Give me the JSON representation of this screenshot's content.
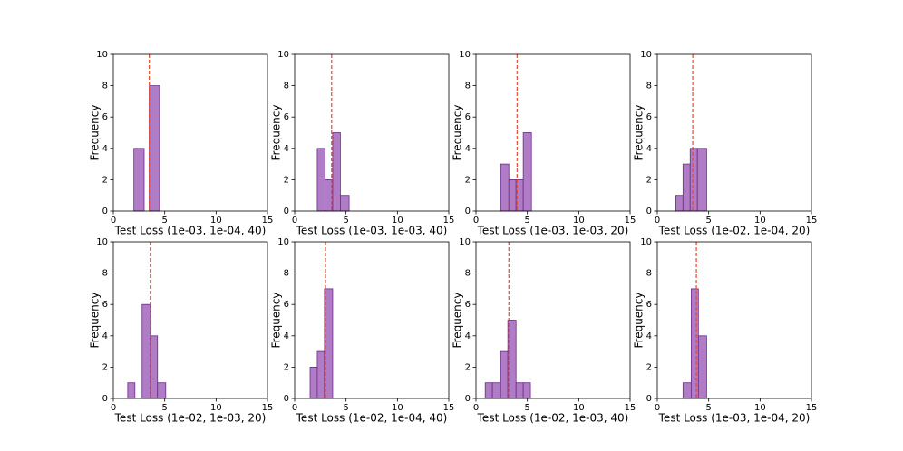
{
  "chart_data": [
    {
      "type": "histogram",
      "bins": [
        2.0,
        3.0,
        3.5,
        4.5
      ],
      "counts": [
        4,
        0,
        8
      ],
      "vline": 3.5,
      "xlabel": "Test Loss (1e-03, 1e-04, 40)",
      "ylabel": "Frequency",
      "xlim": [
        0,
        15
      ],
      "ylim": [
        0,
        10
      ],
      "xticks": [
        0,
        5,
        10,
        15
      ],
      "yticks": [
        0,
        2,
        4,
        6,
        8,
        10
      ],
      "color": "#b07cc6",
      "edgecolor": "#6a2c86",
      "vline_color": "#e8472f"
    },
    {
      "type": "histogram",
      "bins": [
        2.2,
        2.95,
        3.7,
        4.45,
        5.3
      ],
      "counts": [
        4,
        2,
        5,
        1
      ],
      "vline": 3.6,
      "xlabel": "Test Loss (1e-03, 1e-03, 40)",
      "ylabel": "Frequency",
      "xlim": [
        0,
        15
      ],
      "ylim": [
        0,
        10
      ],
      "xticks": [
        0,
        5,
        10,
        15
      ],
      "yticks": [
        0,
        2,
        4,
        6,
        8,
        10
      ],
      "color": "#b07cc6",
      "edgecolor": "#6a2c86",
      "vline_color": "#e8472f"
    },
    {
      "type": "histogram",
      "bins": [
        2.4,
        3.2,
        3.9,
        4.6,
        5.4
      ],
      "counts": [
        3,
        2,
        2,
        5
      ],
      "vline": 4.0,
      "xlabel": "Test Loss (1e-03, 1e-03, 20)",
      "ylabel": "Frequency",
      "xlim": [
        0,
        15
      ],
      "ylim": [
        0,
        10
      ],
      "xticks": [
        0,
        5,
        10,
        15
      ],
      "yticks": [
        0,
        2,
        4,
        6,
        8,
        10
      ],
      "color": "#b07cc6",
      "edgecolor": "#6a2c86",
      "vline_color": "#e8472f"
    },
    {
      "type": "histogram",
      "bins": [
        1.8,
        2.5,
        3.2,
        3.9,
        4.8
      ],
      "counts": [
        1,
        3,
        4,
        4
      ],
      "vline": 3.45,
      "xlabel": "Test Loss (1e-02, 1e-04, 20)",
      "ylabel": "Frequency",
      "xlim": [
        0,
        15
      ],
      "ylim": [
        0,
        10
      ],
      "xticks": [
        0,
        5,
        10,
        15
      ],
      "yticks": [
        0,
        2,
        4,
        6,
        8,
        10
      ],
      "color": "#b07cc6",
      "edgecolor": "#6a2c86",
      "vline_color": "#e8472f"
    },
    {
      "type": "histogram",
      "bins": [
        1.4,
        2.1,
        2.8,
        3.6,
        4.3,
        5.1
      ],
      "counts": [
        1,
        0,
        6,
        4,
        1
      ],
      "vline": 3.6,
      "xlabel": "Test Loss (1e-02, 1e-03, 20)",
      "ylabel": "Frequency",
      "xlim": [
        0,
        15
      ],
      "ylim": [
        0,
        10
      ],
      "xticks": [
        0,
        5,
        10,
        15
      ],
      "yticks": [
        0,
        2,
        4,
        6,
        8,
        10
      ],
      "color": "#b07cc6",
      "edgecolor": "#6a2c86",
      "vline_color": "#e8472f"
    },
    {
      "type": "histogram",
      "bins": [
        1.5,
        2.2,
        2.9,
        3.7
      ],
      "counts": [
        2,
        3,
        7
      ],
      "vline": 3.0,
      "xlabel": "Test Loss (1e-02, 1e-04, 40)",
      "ylabel": "Frequency",
      "xlim": [
        0,
        15
      ],
      "ylim": [
        0,
        10
      ],
      "xticks": [
        0,
        5,
        10,
        15
      ],
      "yticks": [
        0,
        2,
        4,
        6,
        8,
        10
      ],
      "color": "#b07cc6",
      "edgecolor": "#6a2c86",
      "vline_color": "#e8472f"
    },
    {
      "type": "histogram",
      "bins": [
        0.9,
        1.6,
        2.4,
        3.1,
        3.9,
        4.6,
        5.3
      ],
      "counts": [
        1,
        1,
        3,
        5,
        1,
        1
      ],
      "vline": 3.2,
      "xlabel": "Test Loss (1e-02, 1e-03, 40)",
      "ylabel": "Frequency",
      "xlim": [
        0,
        15
      ],
      "ylim": [
        0,
        10
      ],
      "xticks": [
        0,
        5,
        10,
        15
      ],
      "yticks": [
        0,
        2,
        4,
        6,
        8,
        10
      ],
      "color": "#b07cc6",
      "edgecolor": "#6a2c86",
      "vline_color": "#e8472f"
    },
    {
      "type": "histogram",
      "bins": [
        2.5,
        3.3,
        4.0,
        4.8
      ],
      "counts": [
        1,
        7,
        4
      ],
      "vline": 3.8,
      "xlabel": "Test Loss (1e-03, 1e-04, 20)",
      "ylabel": "Frequency",
      "xlim": [
        0,
        15
      ],
      "ylim": [
        0,
        10
      ],
      "xticks": [
        0,
        5,
        10,
        15
      ],
      "yticks": [
        0,
        2,
        4,
        6,
        8,
        10
      ],
      "color": "#b07cc6",
      "edgecolor": "#6a2c86",
      "vline_color": "#e8472f"
    }
  ]
}
